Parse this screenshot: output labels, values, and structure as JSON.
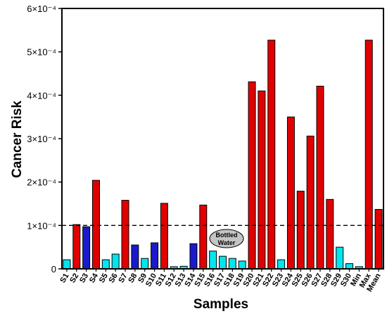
{
  "chart_data": {
    "type": "bar",
    "title": "",
    "xlabel": "Samples",
    "ylabel": "Cancer Risk",
    "ylim": [
      0,
      0.0006
    ],
    "y_ticks": [
      {
        "value": 0,
        "label": "0"
      },
      {
        "value": 0.0001,
        "label": "1×10⁻⁴"
      },
      {
        "value": 0.0002,
        "label": "2×10⁻⁴"
      },
      {
        "value": 0.0003,
        "label": "3×10⁻⁴"
      },
      {
        "value": 0.0004,
        "label": "4×10⁻⁴"
      },
      {
        "value": 0.0005,
        "label": "5×10⁻⁴"
      },
      {
        "value": 0.0006,
        "label": "6×10⁻⁴"
      }
    ],
    "categories": [
      "S1",
      "S2",
      "S3",
      "S4",
      "S5",
      "S6",
      "S7",
      "S8",
      "S9",
      "S10",
      "S11",
      "S12",
      "S13",
      "S14",
      "S15",
      "S16",
      "S17",
      "S18",
      "S19",
      "S20",
      "S21",
      "S22",
      "S23",
      "S24",
      "S25",
      "S26",
      "S27",
      "S28",
      "S29",
      "S30",
      "Min",
      "Max",
      "Mean"
    ],
    "values": [
      2.1e-05,
      0.000102,
      9.7e-05,
      0.000204,
      2.1e-05,
      3.4e-05,
      0.000158,
      5.5e-05,
      2.4e-05,
      6e-05,
      0.000151,
      5e-06,
      6e-06,
      5.8e-05,
      0.000147,
      4.1e-05,
      2.9e-05,
      2.4e-05,
      1.8e-05,
      0.000431,
      0.00041,
      0.000527,
      2.1e-05,
      0.00035,
      0.000179,
      0.000306,
      0.000421,
      0.00016,
      5e-05,
      1.2e-05,
      5e-06,
      0.000527,
      0.000137
    ],
    "bar_colors": [
      "#00e5ee",
      "#e00000",
      "#1a1acc",
      "#e00000",
      "#00e5ee",
      "#00e5ee",
      "#e00000",
      "#1a1acc",
      "#00e5ee",
      "#1a1acc",
      "#e00000",
      "#00e5ee",
      "#00e5ee",
      "#1a1acc",
      "#e00000",
      "#00e5ee",
      "#00e5ee",
      "#00e5ee",
      "#00e5ee",
      "#e00000",
      "#e00000",
      "#e00000",
      "#00e5ee",
      "#e00000",
      "#e00000",
      "#e00000",
      "#e00000",
      "#e00000",
      "#00e5ee",
      "#00e5ee",
      "#00e5ee",
      "#e00000",
      "#e00000"
    ],
    "reference_line": {
      "value": 0.0001,
      "style": "dashed"
    },
    "annotation": {
      "text_line1": "Bottled",
      "text_line2": "Water"
    },
    "grid": false,
    "legend": "none"
  }
}
